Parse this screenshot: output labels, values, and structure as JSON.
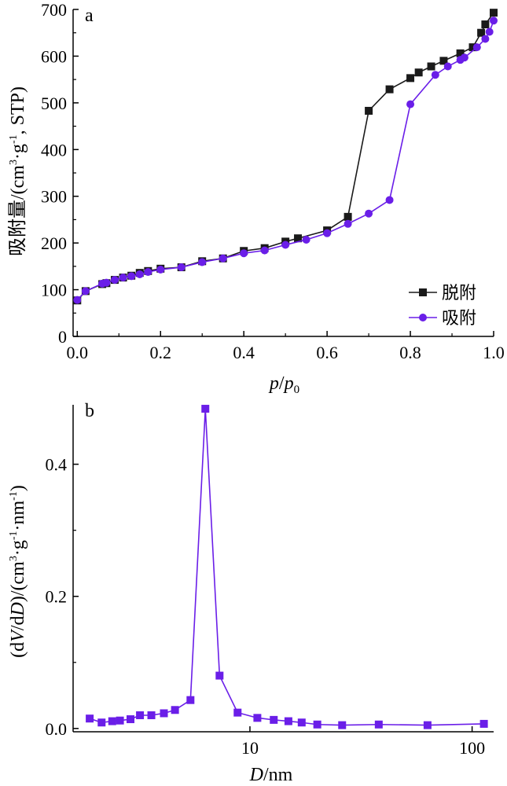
{
  "colors": {
    "desorption": "#1a1a1a",
    "adsorption": "#6a1ee8",
    "axis": "#000000"
  },
  "chart_data": [
    {
      "type": "line",
      "panel_label": "a",
      "xlabel_italic_base": "p",
      "xlabel_slash": "/",
      "xlabel_sub_base": "p",
      "xlabel_sub": "0",
      "ylabel_pre": "吸附量/(cm",
      "ylabel_sup1": "3",
      "ylabel_mid": "·g",
      "ylabel_sup2": "-1",
      "ylabel_post": ", STP)",
      "xlim": [
        -0.01,
        1.0
      ],
      "ylim": [
        0,
        700
      ],
      "xticks": [
        0.0,
        0.2,
        0.4,
        0.6,
        0.8,
        1.0
      ],
      "xtick_labels": [
        "0.0",
        "0.2",
        "0.4",
        "0.6",
        "0.8",
        "1.0"
      ],
      "yticks": [
        0,
        100,
        200,
        300,
        400,
        500,
        600,
        700
      ],
      "ytick_labels": [
        "0",
        "100",
        "200",
        "300",
        "400",
        "500",
        "600",
        "700"
      ],
      "legend_position": "lower-right",
      "series": [
        {
          "name": "脱附",
          "marker": "square",
          "x": [
            0.0,
            0.02,
            0.06,
            0.07,
            0.09,
            0.11,
            0.13,
            0.15,
            0.17,
            0.2,
            0.25,
            0.3,
            0.35,
            0.4,
            0.45,
            0.5,
            0.53,
            0.6,
            0.65,
            0.7,
            0.75,
            0.8,
            0.82,
            0.85,
            0.88,
            0.92,
            0.95,
            0.97,
            0.98,
            1.0
          ],
          "y": [
            77,
            97,
            112,
            114,
            121,
            126,
            130,
            136,
            140,
            145,
            148,
            161,
            167,
            183,
            189,
            203,
            210,
            227,
            256,
            483,
            529,
            553,
            565,
            578,
            590,
            606,
            619,
            650,
            668,
            693
          ]
        },
        {
          "name": "吸附",
          "marker": "circle",
          "x": [
            0.0,
            0.02,
            0.06,
            0.07,
            0.09,
            0.11,
            0.13,
            0.15,
            0.17,
            0.2,
            0.25,
            0.3,
            0.35,
            0.4,
            0.45,
            0.5,
            0.55,
            0.6,
            0.65,
            0.7,
            0.75,
            0.8,
            0.86,
            0.89,
            0.92,
            0.93,
            0.96,
            0.98,
            0.99,
            1.0
          ],
          "y": [
            78,
            97,
            113,
            115,
            121,
            126,
            129,
            133,
            138,
            143,
            148,
            159,
            167,
            178,
            184,
            196,
            207,
            221,
            241,
            263,
            292,
            497,
            560,
            578,
            592,
            597,
            619,
            637,
            652,
            676
          ]
        }
      ]
    },
    {
      "type": "line",
      "panel_label": "b",
      "xscale": "log",
      "xlabel_italic": "D",
      "xlabel_rest": "/nm",
      "ylabel_p1": "(d",
      "ylabel_V": "V",
      "ylabel_p2": "/d",
      "ylabel_D": "D",
      "ylabel_p3": ")/(cm",
      "ylabel_sup1": "3",
      "ylabel_p4": "·g",
      "ylabel_sup2": "-1",
      "ylabel_p5": "·nm",
      "ylabel_sup3": "-1",
      "ylabel_p6": ")",
      "xlim": [
        1.6,
        125
      ],
      "ylim": [
        -0.005,
        0.49
      ],
      "xticks": [
        10,
        100
      ],
      "xtick_labels": [
        "10",
        "100"
      ],
      "yticks": [
        0.0,
        0.2,
        0.4
      ],
      "ytick_labels": [
        "0.0",
        "0.2",
        "0.4"
      ],
      "series": [
        {
          "marker": "square",
          "x": [
            1.9,
            2.15,
            2.4,
            2.6,
            2.9,
            3.2,
            3.6,
            4.1,
            4.6,
            5.4,
            6.3,
            7.3,
            8.8,
            10.8,
            12.8,
            14.9,
            17.1,
            20.1,
            26.0,
            38.0,
            63.0,
            113.0
          ],
          "y": [
            0.015,
            0.009,
            0.011,
            0.012,
            0.014,
            0.02,
            0.02,
            0.023,
            0.028,
            0.043,
            0.484,
            0.08,
            0.024,
            0.016,
            0.013,
            0.011,
            0.009,
            0.006,
            0.005,
            0.006,
            0.005,
            0.007
          ]
        }
      ]
    }
  ]
}
